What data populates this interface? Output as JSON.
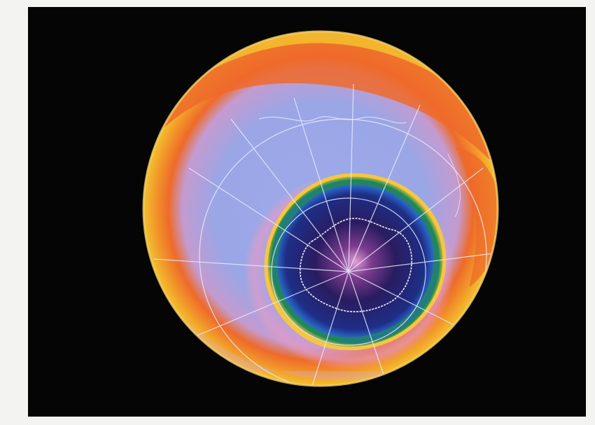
{
  "image": {
    "subject": "ozone-hole-globe",
    "colors": {
      "background": "#050505",
      "outer_ring": "#f2c12e",
      "mid_ring": "#ee6a2a",
      "plateau": "#9aa6e6",
      "hole_edge": "#f7c640",
      "hole_core": "#1b1448",
      "grid_lines": "#e8ecff"
    }
  }
}
